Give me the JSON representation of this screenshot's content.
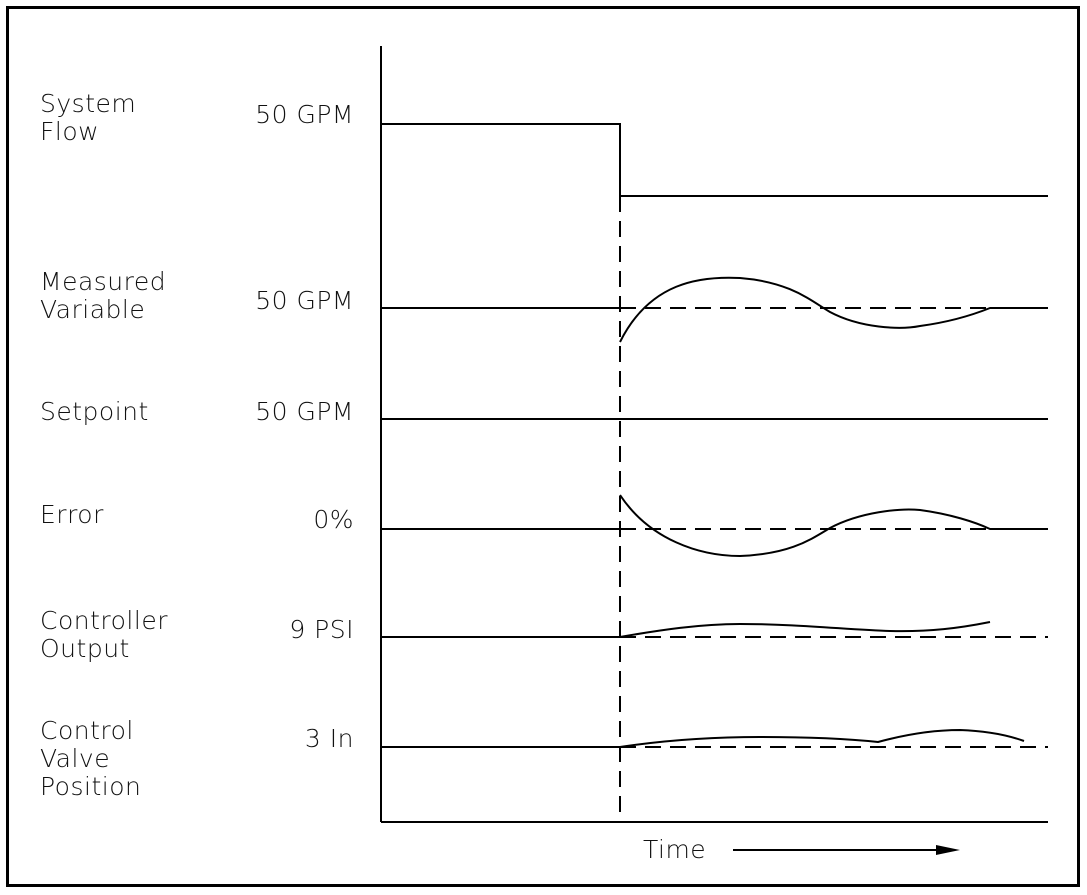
{
  "signals": [
    {
      "name": "System\nFlow",
      "value": "50 GPM"
    },
    {
      "name": "Measured\nVariable",
      "value": "50 GPM"
    },
    {
      "name": "Setpoint",
      "value": "50 GPM"
    },
    {
      "name": "Error",
      "value": "0%"
    },
    {
      "name": "Controller\nOutput",
      "value": "9 PSI"
    },
    {
      "name": "Control\nValve\nPosition",
      "value": "3 In"
    }
  ],
  "x_axis": {
    "label": "Time"
  },
  "colors": {
    "line": "#000000",
    "background": "#ffffff"
  }
}
